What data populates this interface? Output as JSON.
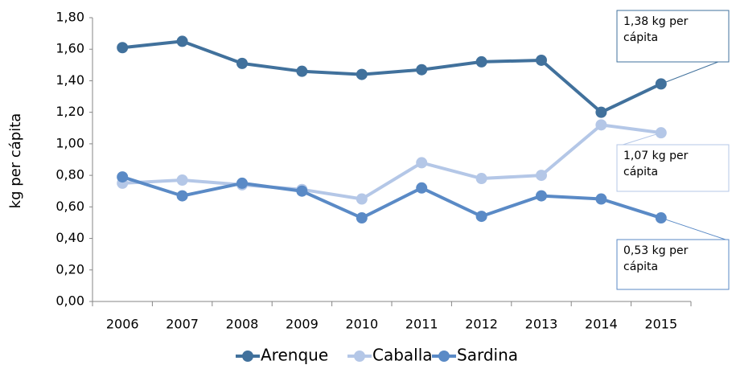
{
  "chart_data": {
    "type": "line",
    "y_label": "kg per cápita",
    "categories": [
      "2006",
      "2007",
      "2008",
      "2009",
      "2010",
      "2011",
      "2012",
      "2013",
      "2014",
      "2015"
    ],
    "series": [
      {
        "name": "Arenque",
        "color": "#41719c",
        "values": [
          1.61,
          1.65,
          1.51,
          1.46,
          1.44,
          1.47,
          1.52,
          1.53,
          1.2,
          1.38
        ]
      },
      {
        "name": "Caballa",
        "color": "#b4c7e7",
        "values": [
          0.75,
          0.77,
          0.74,
          0.71,
          0.65,
          0.88,
          0.78,
          0.8,
          1.12,
          1.07
        ]
      },
      {
        "name": "Sardina",
        "color": "#5a8ac6",
        "values": [
          0.79,
          0.67,
          0.75,
          0.7,
          0.53,
          0.72,
          0.54,
          0.67,
          0.65,
          0.53
        ]
      }
    ],
    "annotations": [
      "1,38 kg per cápita",
      "1,07 kg per cápita",
      "0,53 kg per cápita"
    ],
    "ylim": [
      0,
      1.8
    ],
    "yticks": [
      {
        "value": 0,
        "label": "0,00"
      },
      {
        "value": 0.2,
        "label": "0,20"
      },
      {
        "value": 0.4,
        "label": "0,40"
      },
      {
        "value": 0.6,
        "label": "0,60"
      },
      {
        "value": 0.8,
        "label": "0,80"
      },
      {
        "value": 1.0,
        "label": "1,00"
      },
      {
        "value": 1.2,
        "label": "1,20"
      },
      {
        "value": 1.4,
        "label": "1,40"
      },
      {
        "value": 1.6,
        "label": "1,60"
      },
      {
        "value": 1.8,
        "label": "1,80"
      }
    ],
    "grid": false,
    "legend": "bottom"
  }
}
